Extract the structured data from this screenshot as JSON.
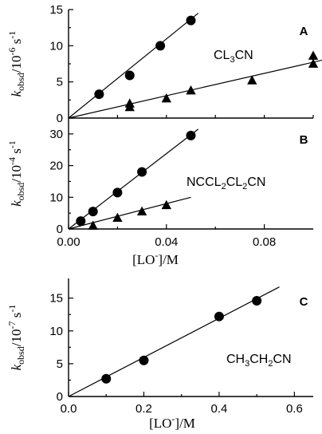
{
  "chart_data": [
    {
      "type": "scatter",
      "panel": "A",
      "annotation": "CL3CN",
      "xlim": [
        0,
        0.1
      ],
      "ylim": [
        0,
        15
      ],
      "yticks": [
        0,
        5,
        10,
        15
      ],
      "ytick_labels": [
        "0",
        "5",
        "10",
        "15"
      ],
      "ylabel": {
        "k": "k",
        "sub": "obsd",
        "unit": "/10",
        "exp": "-6",
        "tail": " s",
        "tailexp": "-1"
      },
      "series": [
        {
          "marker": "circle",
          "x": [
            0.0125,
            0.025,
            0.0375,
            0.05
          ],
          "y": [
            3.3,
            5.9,
            10.0,
            13.5
          ],
          "fit": [
            [
              0.0,
              0.0
            ],
            [
              0.053,
              14.5
            ]
          ]
        },
        {
          "marker": "triangle",
          "x": [
            0.025,
            0.025,
            0.04,
            0.05,
            0.075,
            0.1,
            0.1
          ],
          "y": [
            1.5,
            2.0,
            2.7,
            3.8,
            5.2,
            7.5,
            8.6
          ],
          "fit": [
            [
              0.0,
              0.0
            ],
            [
              0.11,
              8.5
            ]
          ]
        }
      ]
    },
    {
      "type": "scatter",
      "panel": "B",
      "annotation": "NCCL2CL2CN",
      "xlim": [
        0,
        0.1
      ],
      "ylim": [
        0,
        35
      ],
      "yticks": [
        0,
        10,
        20,
        30
      ],
      "ytick_labels": [
        "0",
        "10",
        "20",
        "30"
      ],
      "xticks": [
        0.0,
        0.04,
        0.08
      ],
      "xtick_labels": [
        "0.00",
        "0.04",
        "0.08"
      ],
      "xlabel": {
        "open": "[LO",
        "sup": "-",
        "close": "]/M"
      },
      "ylabel": {
        "k": "k",
        "sub": "obsd",
        "unit": "/10",
        "exp": "-4",
        "tail": " s",
        "tailexp": "-1"
      },
      "series": [
        {
          "marker": "circle",
          "x": [
            0.005,
            0.01,
            0.02,
            0.03,
            0.05
          ],
          "y": [
            2.5,
            5.5,
            11.5,
            18.0,
            29.5
          ],
          "fit": [
            [
              0.0,
              0.0
            ],
            [
              0.053,
              31.5
            ]
          ]
        },
        {
          "marker": "triangle",
          "x": [
            0.01,
            0.02,
            0.03,
            0.04
          ],
          "y": [
            1.0,
            3.5,
            5.5,
            7.5
          ],
          "fit": [
            [
              0.0,
              0.0
            ],
            [
              0.05,
              10.0
            ]
          ]
        }
      ]
    },
    {
      "type": "scatter",
      "panel": "C",
      "annotation": "CH3CH2CN",
      "xlim": [
        0,
        0.65
      ],
      "ylim": [
        0,
        18
      ],
      "yticks": [
        0,
        5,
        10,
        15
      ],
      "ytick_labels": [
        "0",
        "5",
        "10",
        "15"
      ],
      "xticks": [
        0.0,
        0.2,
        0.4,
        0.6
      ],
      "xtick_labels": [
        "0.0",
        "0.2",
        "0.4",
        "0.6"
      ],
      "xlabel": {
        "open": "[LO",
        "sup": "-",
        "close": "]/M"
      },
      "ylabel": {
        "k": "k",
        "sub": "obsd",
        "unit": "/10",
        "exp": "-7",
        "tail": " s",
        "tailexp": "-1"
      },
      "series": [
        {
          "marker": "circle",
          "x": [
            0.1,
            0.2,
            0.4,
            0.5
          ],
          "y": [
            2.7,
            5.5,
            12.2,
            14.6
          ],
          "fit": [
            [
              0.0,
              0.0
            ],
            [
              0.56,
              16.7
            ]
          ]
        }
      ]
    }
  ]
}
